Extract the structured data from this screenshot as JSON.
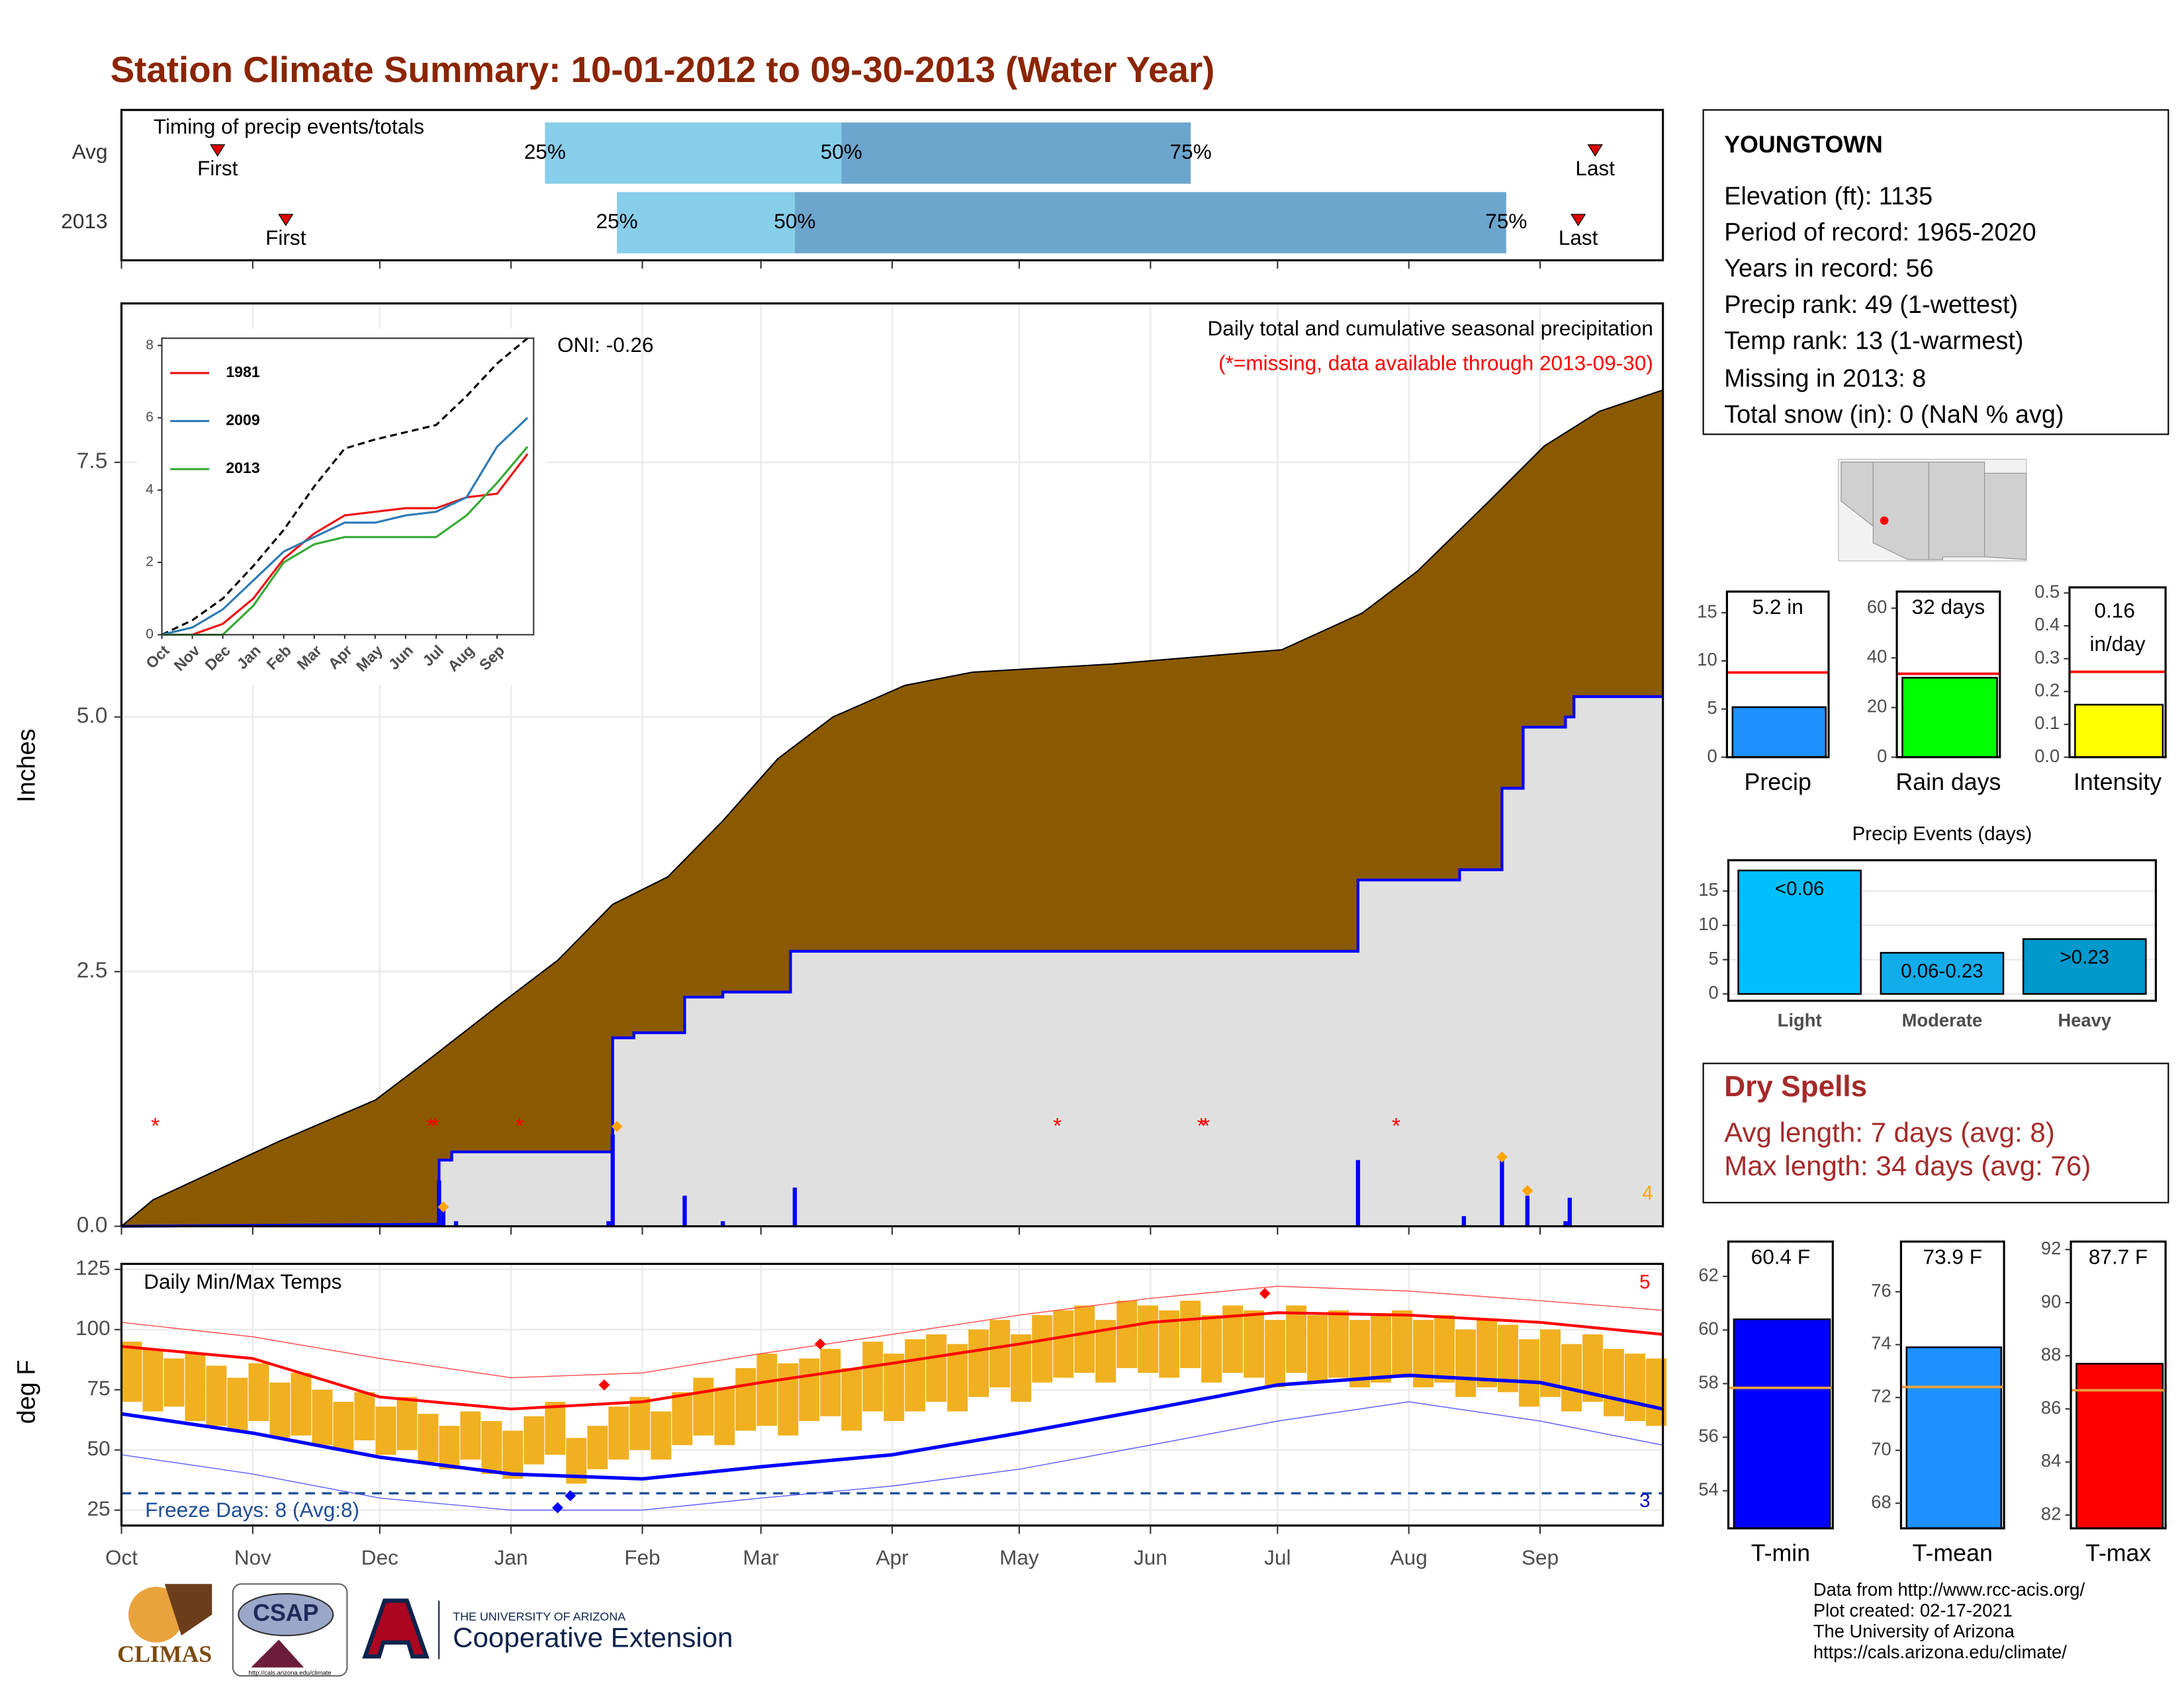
{
  "title": "Station Climate Summary: 10-01-2012 to 09-30-2013 (Water Year)",
  "chart_data": [
    {
      "type": "timing",
      "title": "Timing of precip events/totals",
      "categories": [
        "Avg",
        "2013"
      ],
      "first": [
        22.7,
        38.8
      ],
      "p25": [
        100,
        117
      ],
      "p50": [
        170,
        159
      ],
      "p75": [
        252.5,
        327
      ],
      "last": [
        348,
        344
      ],
      "labels": {
        "first": "First",
        "last": "Last",
        "p25": "25%",
        "p50": "50%",
        "p75": "75%"
      },
      "colors": [
        "#87ceeb",
        "#6ca6cd"
      ],
      "marker_color": "#dd0000",
      "xlim": [
        0,
        364
      ],
      "xticks": [
        0,
        31,
        61,
        92,
        123,
        151,
        182,
        212,
        243,
        273,
        304,
        335
      ]
    },
    {
      "type": "cumulative",
      "title": "Daily total and cumulative seasonal precipitation",
      "subtitle": "(*=missing, data available through 2013-09-30)",
      "annotation": "ONI: -0.26",
      "ylabel": "Inches",
      "corner_label": "4",
      "series": [
        {
          "color": "#8b5a00",
          "x": [
            0,
            7.5,
            37,
            60,
            73,
            90,
            103,
            116,
            129,
            142,
            155,
            168,
            185,
            201,
            234,
            274,
            293,
            306,
            323,
            336,
            349,
            364
          ],
          "values": [
            0,
            0.26,
            0.83,
            1.24,
            1.65,
            2.2,
            2.61,
            3.16,
            3.43,
            3.98,
            4.59,
            5.0,
            5.31,
            5.44,
            5.52,
            5.66,
            6.02,
            6.43,
            7.12,
            7.66,
            8.0,
            8.21
          ]
        },
        {
          "color": "#0000ff",
          "x": [
            0,
            75,
            75,
            78,
            78,
            116,
            116,
            121,
            121,
            133,
            133,
            142,
            142,
            158,
            158,
            292,
            292,
            316,
            316,
            326,
            326,
            331,
            331,
            341,
            341,
            343,
            343,
            364
          ],
          "values": [
            0,
            0.02,
            0.65,
            0.65,
            0.73,
            0.73,
            1.85,
            1.85,
            1.9,
            1.9,
            2.25,
            2.25,
            2.3,
            2.3,
            2.7,
            2.7,
            3.4,
            3.4,
            3.5,
            3.5,
            4.3,
            4.3,
            4.9,
            4.9,
            5.0,
            5.0,
            5.2,
            5.2
          ]
        }
      ],
      "daily": {
        "color": "#0000ff",
        "x": [
          75,
          76,
          79,
          115,
          116,
          133,
          142,
          159,
          292,
          317,
          326,
          332,
          341,
          342
        ],
        "values": [
          0.45,
          0.2,
          0.05,
          0.05,
          0.9,
          0.3,
          0.05,
          0.38,
          0.65,
          0.1,
          0.68,
          0.3,
          0.05,
          0.28
        ]
      },
      "records": {
        "color": "#ffa500",
        "x": [
          76,
          117,
          326,
          332
        ],
        "values": [
          0.19,
          0.98,
          0.68,
          0.35
        ]
      },
      "missing": {
        "label": "*",
        "color": "#ff0000",
        "x": [
          8,
          73,
          74,
          94,
          221,
          255,
          256,
          301
        ]
      },
      "fill_color": "#e0e0e0",
      "grid": true,
      "xlim": [
        0,
        364
      ],
      "xticks": [
        0,
        31,
        61,
        92,
        123,
        151,
        182,
        212,
        243,
        273,
        304,
        335
      ],
      "ylim": [
        0,
        9.06
      ],
      "yticks": [
        {
          "value": 0,
          "label": "0.0"
        },
        2.5,
        {
          "value": 5,
          "label": "5.0"
        },
        7.5
      ]
    },
    {
      "type": "line",
      "x": [
        0,
        1,
        2,
        3,
        4,
        5,
        6,
        7,
        8,
        9,
        10,
        11,
        12
      ],
      "average": {
        "color": "#000000",
        "values": [
          0,
          0.4,
          1.0,
          1.9,
          2.9,
          4.1,
          5.15,
          5.4,
          5.6,
          5.8,
          6.6,
          7.5,
          8.2
        ]
      },
      "series": [
        {
          "name": "1981",
          "color": "#ee1111",
          "values": [
            0,
            0,
            0.3,
            1.0,
            2.1,
            2.8,
            3.3,
            3.4,
            3.5,
            3.5,
            3.8,
            3.9,
            5.0
          ]
        },
        {
          "name": "2009",
          "color": "#2c7bb6",
          "values": [
            0,
            0.2,
            0.7,
            1.5,
            2.3,
            2.7,
            3.1,
            3.1,
            3.3,
            3.4,
            3.8,
            5.2,
            6.0
          ]
        },
        {
          "name": "2013",
          "color": "#33aa33",
          "values": [
            0,
            0,
            0,
            0.8,
            2.0,
            2.5,
            2.7,
            2.7,
            2.7,
            2.7,
            3.3,
            4.2,
            5.2
          ]
        }
      ],
      "xlim": [
        0,
        12.2
      ],
      "xticks": [
        {
          "value": 0,
          "label": "Oct"
        },
        {
          "value": 1,
          "label": "Nov"
        },
        {
          "value": 2,
          "label": "Dec"
        },
        {
          "value": 3,
          "label": "Jan"
        },
        {
          "value": 4,
          "label": "Feb"
        },
        {
          "value": 5,
          "label": "Mar"
        },
        {
          "value": 6,
          "label": "Apr"
        },
        {
          "value": 7,
          "label": "May"
        },
        {
          "value": 8,
          "label": "Jun"
        },
        {
          "value": 9,
          "label": "Jul"
        },
        {
          "value": 10,
          "label": "Aug"
        },
        {
          "value": 11,
          "label": "Sep"
        }
      ],
      "ylim": [
        0,
        8.2
      ],
      "yticks": [
        0,
        2,
        4,
        6,
        8
      ]
    },
    {
      "type": "temperature",
      "title": "Daily Min/Max Temps",
      "ylabel": "deg F",
      "annotation": "Freeze Days: 8 (Avg:8)",
      "high_label": "5",
      "low_label": "3",
      "freeze": 32,
      "x": [
        0,
        31,
        61,
        92,
        123,
        151,
        182,
        212,
        243,
        273,
        304,
        335,
        364
      ],
      "series": [
        {
          "color": "#ff0000",
          "width": 2,
          "values": [
            93,
            88,
            72,
            67,
            70,
            78,
            86,
            94,
            103,
            107,
            106,
            103,
            98
          ]
        },
        {
          "color": "#0000ff",
          "width": 2.5,
          "values": [
            65,
            57,
            47,
            40,
            38,
            43,
            48,
            57,
            67,
            77,
            81,
            78,
            67
          ]
        },
        {
          "color": "#ff5050",
          "width": 0.7,
          "values": [
            103,
            97,
            88,
            80,
            82,
            90,
            98,
            106,
            113,
            118,
            116,
            112,
            108
          ]
        },
        {
          "color": "#6060ff",
          "width": 0.7,
          "values": [
            48,
            40,
            30,
            25,
            25,
            30,
            35,
            42,
            52,
            62,
            70,
            62,
            52
          ]
        }
      ],
      "daily": {
        "color": "#f0b020",
        "x": [
          0,
          5,
          10,
          15,
          20,
          25,
          30,
          35,
          40,
          45,
          50,
          55,
          60,
          65,
          70,
          75,
          80,
          85,
          90,
          95,
          100,
          105,
          110,
          115,
          120,
          125,
          130,
          135,
          140,
          145,
          150,
          155,
          160,
          165,
          170,
          175,
          180,
          185,
          190,
          195,
          200,
          205,
          210,
          215,
          220,
          225,
          230,
          235,
          240,
          245,
          250,
          255,
          260,
          265,
          270,
          275,
          280,
          285,
          290,
          295,
          300,
          305,
          310,
          315,
          320,
          325,
          330,
          335,
          340,
          345,
          350,
          355,
          360
        ],
        "high": [
          95,
          92,
          88,
          90,
          85,
          80,
          86,
          78,
          82,
          75,
          70,
          74,
          68,
          72,
          65,
          60,
          66,
          62,
          58,
          64,
          70,
          55,
          60,
          68,
          72,
          66,
          74,
          80,
          76,
          84,
          90,
          86,
          88,
          92,
          84,
          95,
          90,
          96,
          98,
          94,
          100,
          104,
          98,
          106,
          108,
          110,
          104,
          112,
          110,
          108,
          112,
          106,
          110,
          108,
          104,
          110,
          106,
          108,
          104,
          106,
          108,
          104,
          106,
          100,
          104,
          102,
          96,
          100,
          94,
          98,
          92,
          90,
          88
        ],
        "low": [
          70,
          66,
          68,
          62,
          60,
          58,
          62,
          55,
          56,
          52,
          50,
          54,
          48,
          50,
          45,
          42,
          46,
          40,
          38,
          44,
          48,
          36,
          42,
          46,
          50,
          46,
          52,
          56,
          52,
          58,
          60,
          56,
          62,
          64,
          58,
          66,
          62,
          66,
          70,
          66,
          72,
          76,
          70,
          78,
          80,
          82,
          78,
          84,
          82,
          80,
          84,
          78,
          82,
          80,
          76,
          82,
          78,
          80,
          76,
          78,
          80,
          76,
          78,
          72,
          76,
          74,
          68,
          72,
          66,
          70,
          64,
          62,
          60
        ]
      },
      "record_highs": {
        "color": "#ff0000",
        "x": [
          114,
          165,
          270
        ],
        "values": [
          77,
          94,
          115
        ]
      },
      "record_lows": {
        "color": "#0000ff",
        "x": [
          103,
          106
        ],
        "values": [
          26,
          31
        ]
      },
      "xlim": [
        0,
        364
      ],
      "xticks": [
        {
          "value": 0,
          "label": "Oct"
        },
        {
          "value": 31,
          "label": "Nov"
        },
        {
          "value": 61,
          "label": "Dec"
        },
        {
          "value": 92,
          "label": "Jan"
        },
        {
          "value": 123,
          "label": "Feb"
        },
        {
          "value": 151,
          "label": "Mar"
        },
        {
          "value": 182,
          "label": "Apr"
        },
        {
          "value": 212,
          "label": "May"
        },
        {
          "value": 243,
          "label": "Jun"
        },
        {
          "value": 273,
          "label": "Jul"
        },
        {
          "value": 304,
          "label": "Aug"
        },
        {
          "value": 335,
          "label": "Sep"
        }
      ],
      "ylim": [
        18.6,
        127.3
      ],
      "yticks": [
        25,
        50,
        75,
        100,
        125
      ],
      "grid": true
    },
    {
      "type": "bar",
      "categories": [
        "Precip"
      ],
      "values": [
        5.2
      ],
      "value_labels": [
        "5.2 in"
      ],
      "average": 8.8,
      "color": "#1e90ff",
      "average_color": "#ff0000",
      "ylim": [
        0,
        17.2
      ],
      "yticks": [
        0,
        5,
        10,
        15
      ]
    },
    {
      "type": "bar",
      "categories": [
        "Rain days"
      ],
      "values": [
        32
      ],
      "value_labels": [
        "32 days"
      ],
      "average": 33.6,
      "color": "#00ff00",
      "average_color": "#ff0000",
      "ylim": [
        0,
        66.7
      ],
      "yticks": [
        0,
        20,
        40,
        60
      ]
    },
    {
      "type": "bar",
      "categories": [
        "Intensity"
      ],
      "values": [
        0.16
      ],
      "value_labels": [
        "0.16 in/day"
      ],
      "average": 0.26,
      "color": "#ffff00",
      "average_color": "#ff0000",
      "ylim": [
        0,
        0.517
      ],
      "yticks": [
        {
          "value": 0,
          "label": "0.0"
        },
        0.1,
        0.2,
        0.3,
        0.4,
        0.5
      ]
    },
    {
      "type": "events",
      "title": "Precip Events (days)",
      "categories": [
        "Light",
        "Moderate",
        "Heavy"
      ],
      "values": [
        18,
        6,
        8
      ],
      "value_labels": [
        "<0.06",
        "0.06-0.23",
        ">0.23"
      ],
      "colors": [
        "#00bfff",
        "#12acea",
        "#0099cc"
      ],
      "ylim": [
        -1,
        19.5
      ],
      "yticks": [
        0,
        5,
        10,
        15
      ],
      "grid": true
    },
    {
      "type": "bar",
      "categories": [
        "T-min"
      ],
      "values": [
        60.4
      ],
      "value_labels": [
        "60.4 F"
      ],
      "average": 57.84,
      "color": "#0000ff",
      "average_color": "#e8a33d",
      "ylim": [
        52.6,
        63.3
      ],
      "yticks": [
        54,
        56,
        58,
        60,
        62
      ]
    },
    {
      "type": "bar",
      "categories": [
        "T-mean"
      ],
      "values": [
        73.9
      ],
      "value_labels": [
        "73.9 F"
      ],
      "average": 72.4,
      "color": "#1e90ff",
      "average_color": "#e8a33d",
      "ylim": [
        67.05,
        77.9
      ],
      "yticks": [
        68,
        70,
        72,
        74,
        76
      ]
    },
    {
      "type": "bar",
      "categories": [
        "T-max"
      ],
      "values": [
        87.7
      ],
      "value_labels": [
        "87.7 F"
      ],
      "average": 86.7,
      "color": "#ff0000",
      "average_color": "#e8a33d",
      "ylim": [
        81.5,
        92.3
      ],
      "yticks": [
        82,
        84,
        86,
        88,
        90,
        92
      ]
    }
  ],
  "station": {
    "name": "YOUNGTOWN",
    "lines": [
      "Elevation (ft): 1135",
      "Period of record: 1965-2020",
      "Years in record: 56",
      "Precip rank: 49 (1-wettest)",
      "Temp rank: 13 (1-warmest)",
      "Missing in 2013: 8",
      "Total snow (in): 0 (NaN % avg)"
    ]
  },
  "dry_spells": {
    "title": "Dry Spells",
    "lines": [
      "Avg length: 7 days (avg: 8)",
      "Max length: 34 days (avg: 76)"
    ]
  },
  "footer": [
    "Data from http://www.rcc-acis.org/",
    "Plot created: 02-17-2021",
    "The University of Arizona",
    "https://cals.arizona.edu/climate/"
  ],
  "logos": {
    "climas": "CLIMAS",
    "csap": "CSAP",
    "csap_url": "http://cals.arizona.edu/climate",
    "university": "THE UNIVERSITY OF ARIZONA",
    "extension": "Cooperative Extension"
  }
}
